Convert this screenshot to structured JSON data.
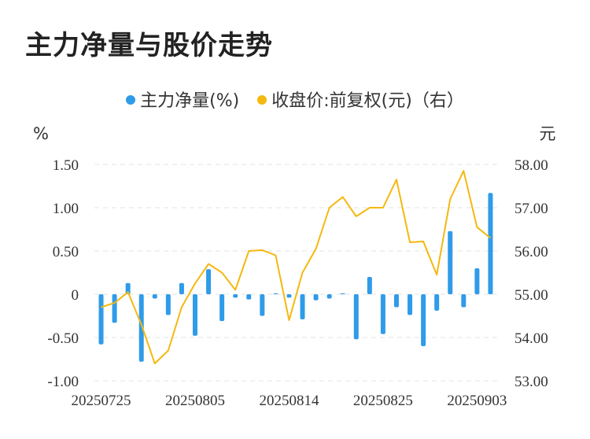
{
  "title": "主力净量与股价走势",
  "colors": {
    "bar": "#2f9be9",
    "line": "#f5b80f",
    "grid": "#e3e3e3"
  },
  "chart_data": {
    "type": "bar+line",
    "legend": [
      {
        "name": "主力净量(%)",
        "color": "#2f9be9"
      },
      {
        "name": "收盘价:前复权(元)（右）",
        "color": "#f5b80f"
      }
    ],
    "left_axis": {
      "unit": "%",
      "min": -1.0,
      "max": 1.5,
      "ticks": [
        {
          "value": 1.5,
          "label": "1.50"
        },
        {
          "value": 1.0,
          "label": "1.00"
        },
        {
          "value": 0.5,
          "label": "0.50"
        },
        {
          "value": 0,
          "label": "0"
        },
        {
          "value": -0.5,
          "label": "-0.50"
        },
        {
          "value": -1.0,
          "label": "-1.00"
        }
      ]
    },
    "right_axis": {
      "unit": "元",
      "min": 53.0,
      "max": 58.0,
      "ticks": [
        {
          "value": 58,
          "label": "58.00"
        },
        {
          "value": 57,
          "label": "57.00"
        },
        {
          "value": 56,
          "label": "56.00"
        },
        {
          "value": 55,
          "label": "55.00"
        },
        {
          "value": 54,
          "label": "54.00"
        },
        {
          "value": 53,
          "label": "53.00"
        }
      ]
    },
    "x_labels": [
      {
        "index": 0,
        "label": "20250725"
      },
      {
        "index": 7,
        "label": "20250805"
      },
      {
        "index": 14,
        "label": "20250814"
      },
      {
        "index": 21,
        "label": "20250825"
      },
      {
        "index": 28,
        "label": "20250903"
      }
    ],
    "bars": [
      -0.58,
      -0.33,
      0.13,
      -0.78,
      -0.05,
      -0.24,
      0.13,
      -0.48,
      0.29,
      -0.31,
      -0.04,
      -0.06,
      -0.25,
      0.01,
      -0.04,
      -0.29,
      -0.07,
      -0.05,
      0.01,
      -0.52,
      0.2,
      -0.46,
      -0.15,
      -0.24,
      -0.6,
      -0.19,
      0.73,
      -0.15,
      0.3,
      1.17
    ],
    "close": [
      54.7,
      54.8,
      55.05,
      54.3,
      53.4,
      53.7,
      54.7,
      55.25,
      55.7,
      55.5,
      55.1,
      56.0,
      56.02,
      55.9,
      54.4,
      55.5,
      56.05,
      57.0,
      57.25,
      56.8,
      57.0,
      57.0,
      57.65,
      56.2,
      56.22,
      55.45,
      57.2,
      57.85,
      56.55,
      56.3
    ]
  }
}
